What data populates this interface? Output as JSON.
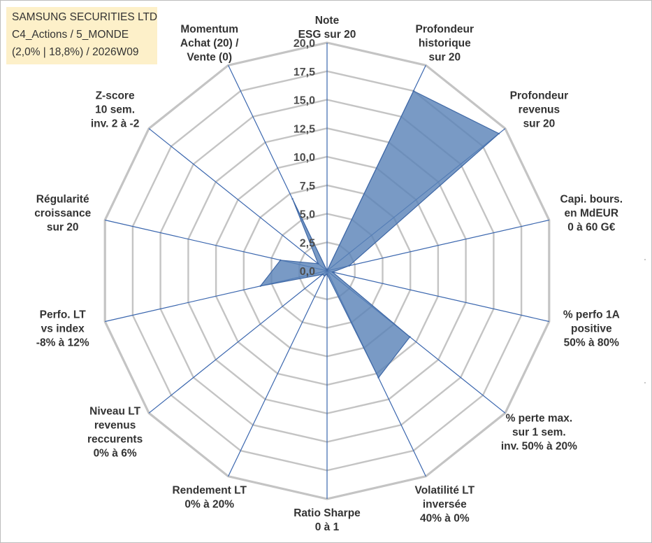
{
  "title": {
    "company": "SAMSUNG SECURITIES LTD",
    "category": "C4_Actions / 5_MONDE",
    "subtitle": "(2,0% | 18,8%) / 2026W09"
  },
  "colors": {
    "fill": "#5b84b8",
    "stroke": "#3f68a6",
    "spoke": "#3a66ae",
    "grid": "#c4c4c4",
    "title_bg": "#fdf0c9"
  },
  "chart_data": {
    "type": "radar",
    "title": "SAMSUNG SECURITIES LTD",
    "rlim": [
      0,
      20
    ],
    "tick_labels": [
      "0,0",
      "2,5",
      "5,0",
      "7,5",
      "10,0",
      "12,5",
      "15,0",
      "17,5",
      "20,0"
    ],
    "ticks": [
      0,
      2.5,
      5,
      7.5,
      10,
      12.5,
      15,
      17.5,
      20
    ],
    "grid": true,
    "legend": "none",
    "axes": [
      {
        "lines": [
          "Note",
          "ESG sur 20"
        ],
        "value": 0
      },
      {
        "lines": [
          "Profondeur",
          "historique",
          "sur 20"
        ],
        "value": 17.5
      },
      {
        "lines": [
          "Profondeur",
          "revenus",
          "sur 20"
        ],
        "value": 19.3
      },
      {
        "lines": [
          "Capi. bours.",
          "en MdEUR",
          "0 à 60 G€"
        ],
        "value": 2.0
      },
      {
        "lines": [
          "% perfo 1A",
          "positive",
          "50% à 80%"
        ],
        "value": 0.5
      },
      {
        "lines": [
          "% perte max.",
          "sur 1 sem.",
          "inv. 50% à 20%"
        ],
        "value": 9.3
      },
      {
        "lines": [
          "Volatilité LT",
          "inversée",
          "40% à 0%"
        ],
        "value": 10.4
      },
      {
        "lines": [
          "Ratio Sharpe",
          "0 à 1"
        ],
        "value": 0.3
      },
      {
        "lines": [
          "Rendement LT",
          "0% à 20%"
        ],
        "value": 0.5
      },
      {
        "lines": [
          "Niveau LT",
          "revenus",
          "reccurents",
          "0% à 6%"
        ],
        "value": 0.5
      },
      {
        "lines": [
          "Perfo. LT",
          "vs index",
          "-8% à 12%"
        ],
        "value": 6.0
      },
      {
        "lines": [
          "Régularité",
          "croissance",
          "sur 20"
        ],
        "value": 4.2
      },
      {
        "lines": [
          "Z-score",
          "10 sem.",
          "inv. 2 à -2"
        ],
        "value": 1.0
      },
      {
        "lines": [
          "Momentum",
          "Achat (20) /",
          "Vente (0)"
        ],
        "value": 7.0
      }
    ],
    "series": [
      {
        "values": [
          0,
          17.5,
          19.3,
          2.0,
          0.5,
          9.3,
          10.4,
          0.3,
          0.5,
          0.5,
          6.0,
          4.2,
          1.0,
          7.0
        ]
      }
    ]
  }
}
